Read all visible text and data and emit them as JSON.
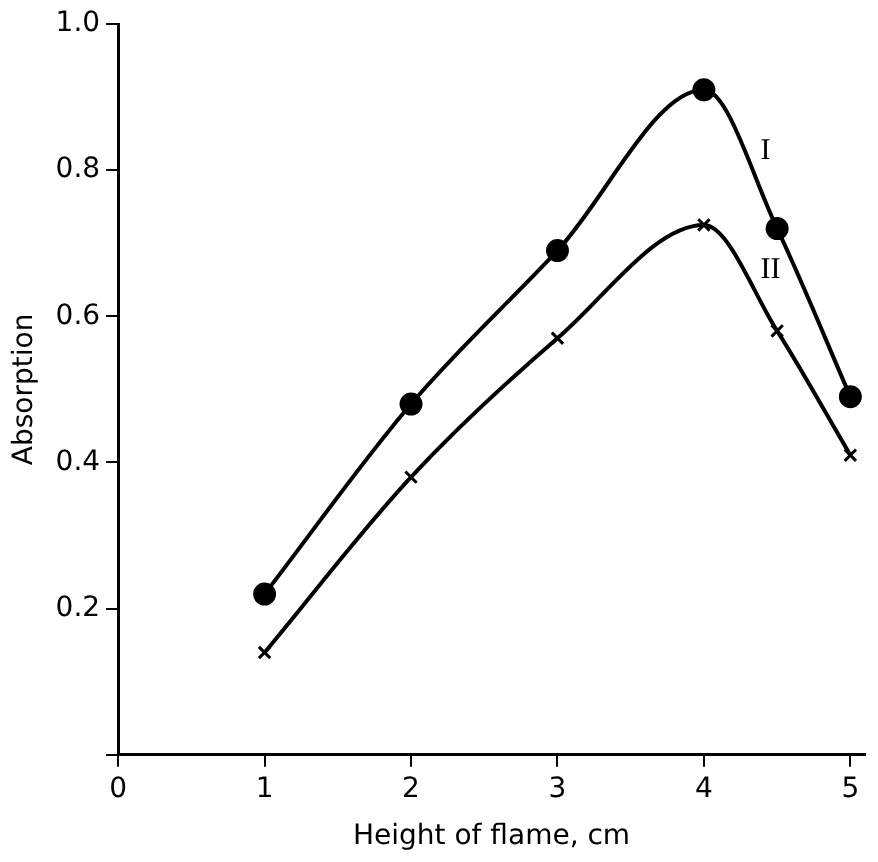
{
  "chart_data": {
    "type": "line",
    "xlabel": "Height of flame, cm",
    "ylabel": "Absorption",
    "x": [
      1,
      2,
      3,
      4,
      4.5,
      5
    ],
    "series": [
      {
        "name": "I",
        "color": "#000000",
        "marker": "circle",
        "values": [
          0.22,
          0.48,
          0.69,
          0.91,
          0.72,
          0.49
        ]
      },
      {
        "name": "II",
        "color": "#000000",
        "marker": "cross",
        "values": [
          0.14,
          0.38,
          0.57,
          0.725,
          0.58,
          0.41
        ]
      }
    ],
    "xlim": [
      0,
      5.1
    ],
    "xticks": [
      0,
      1,
      2,
      3,
      4,
      5
    ],
    "ylim": [
      0,
      1.0
    ],
    "yticks": [
      {
        "value": 0,
        "label": null
      },
      0.2,
      0.4,
      0.6,
      0.8,
      {
        "value": 1.0,
        "label": "1.0"
      }
    ],
    "grid": false,
    "legend": false
  }
}
